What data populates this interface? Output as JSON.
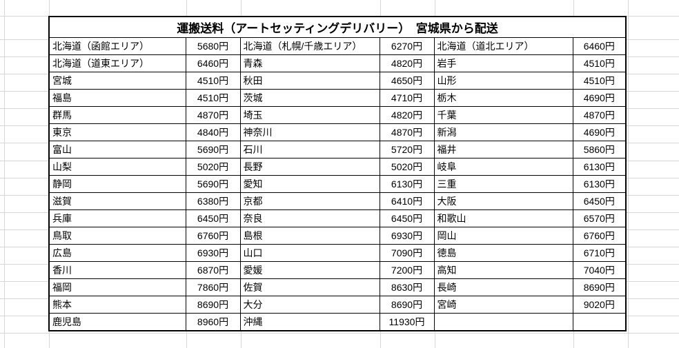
{
  "title": "運搬送料（アートセッティングデリバリー）　宮城県から配送",
  "colors": {
    "background": "#ffffff",
    "grid": "#d6d6d6",
    "table_border": "#000000",
    "text": "#000000"
  },
  "table": {
    "rows": [
      [
        "北海道（函館エリア）",
        "5680円",
        "北海道（札幌/千歳エリア）",
        "6270円",
        "北海道（道北エリア）",
        "6460円"
      ],
      [
        "北海道（道東エリア）",
        "6460円",
        "青森",
        "4820円",
        "岩手",
        "4510円"
      ],
      [
        "宮城",
        "4510円",
        "秋田",
        "4650円",
        "山形",
        "4510円"
      ],
      [
        "福島",
        "4510円",
        "茨城",
        "4710円",
        "栃木",
        "4690円"
      ],
      [
        "群馬",
        "4870円",
        "埼玉",
        "4820円",
        "千葉",
        "4870円"
      ],
      [
        "東京",
        "4840円",
        "神奈川",
        "4870円",
        "新潟",
        "4690円"
      ],
      [
        "富山",
        "5690円",
        "石川",
        "5720円",
        "福井",
        "5860円"
      ],
      [
        "山梨",
        "5020円",
        "長野",
        "5020円",
        "岐阜",
        "6130円"
      ],
      [
        "静岡",
        "5690円",
        "愛知",
        "6130円",
        "三重",
        "6130円"
      ],
      [
        "滋賀",
        "6380円",
        "京都",
        "6410円",
        "大阪",
        "6450円"
      ],
      [
        "兵庫",
        "6450円",
        "奈良",
        "6450円",
        "和歌山",
        "6570円"
      ],
      [
        "鳥取",
        "6760円",
        "島根",
        "6930円",
        "岡山",
        "6760円"
      ],
      [
        "広島",
        "6930円",
        "山口",
        "7090円",
        "徳島",
        "6710円"
      ],
      [
        "香川",
        "6870円",
        "愛媛",
        "7200円",
        "高知",
        "7040円"
      ],
      [
        "福岡",
        "7860円",
        "佐賀",
        "8630円",
        "長崎",
        "8690円"
      ],
      [
        "熊本",
        "8690円",
        "大分",
        "8690円",
        "宮崎",
        "9020円"
      ],
      [
        "鹿児島",
        "8960円",
        "沖縄",
        "11930円",
        "",
        ""
      ]
    ]
  }
}
